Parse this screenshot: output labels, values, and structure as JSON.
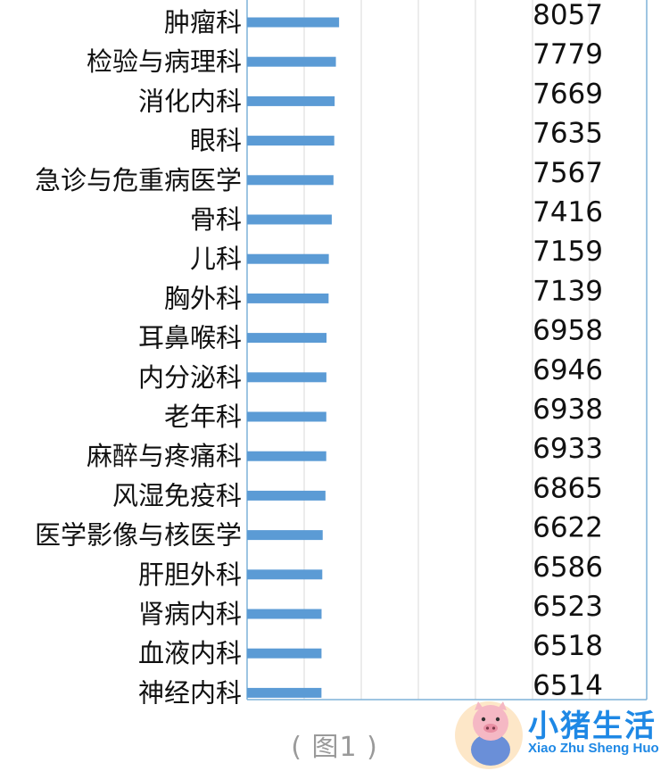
{
  "chart_data": {
    "type": "bar",
    "orientation": "horizontal",
    "categories": [
      "肿瘤科",
      "检验与病理科",
      "消化内科",
      "眼科",
      "急诊与危重病医学",
      "骨科",
      "儿科",
      "胸外科",
      "耳鼻喉科",
      "内分泌科",
      "老年科",
      "麻醉与疼痛科",
      "风湿免疫科",
      "医学影像与核医学",
      "肝胆外科",
      "肾病内科",
      "血液内科",
      "神经内科"
    ],
    "values": [
      8057,
      7779,
      7669,
      7635,
      7567,
      7416,
      7159,
      7139,
      6958,
      6946,
      6938,
      6933,
      6865,
      6622,
      6586,
      6523,
      6518,
      6514
    ],
    "value_labels": [
      "8057",
      "7779",
      "7669",
      "7635",
      "7567",
      "7416",
      "7159",
      "7139",
      "6958",
      "6946",
      "6938",
      "6933",
      "6865",
      "6622",
      "6586",
      "6523",
      "6518",
      "6514"
    ],
    "xlim": [
      0,
      35000
    ],
    "grid": true,
    "legend": "none",
    "bar_color": "#5b9bd5",
    "grid_color": "#d9d9d9",
    "axis_color": "#7fb2d8"
  },
  "caption": "( 图1 )",
  "watermark": {
    "brand": "小猪生活",
    "pinyin": "Xiao Zhu Sheng Huo",
    "color": "#1e88e5",
    "icon": "pig-mascot-icon"
  }
}
